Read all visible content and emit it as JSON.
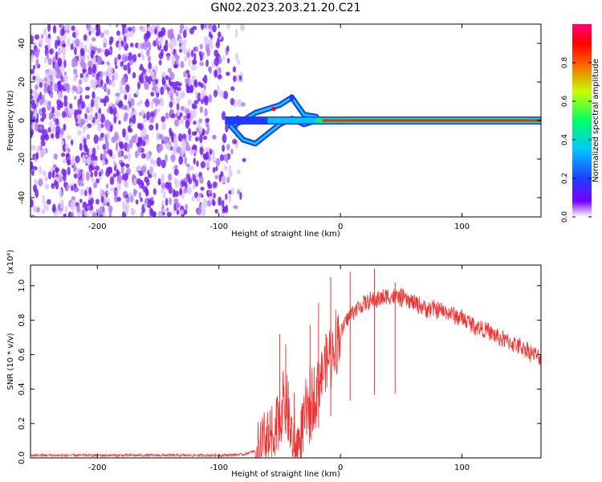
{
  "title": "GN02.2023.203.21.20.C21",
  "chart_data": [
    {
      "type": "heatmap",
      "title": "GN02.2023.203.21.20.C21",
      "xlabel": "Height of straight line (km)",
      "ylabel": "Frequency (Hz)",
      "xlim": [
        -255,
        165
      ],
      "ylim": [
        -50,
        50
      ],
      "x_ticks": [
        -200,
        -100,
        0,
        100
      ],
      "x_tick_labels": [
        "-200",
        "-100",
        "0",
        "100"
      ],
      "y_ticks": [
        -40,
        -20,
        0,
        20,
        40
      ],
      "y_tick_labels": [
        "-40",
        "-20",
        "0",
        "20",
        "40"
      ],
      "noise_region_x": [
        -255,
        -82
      ],
      "signal_line": {
        "frequency_hz": 0,
        "x_start": -20,
        "x_end": 165,
        "amplitude": 1.0
      },
      "branching_track": [
        {
          "x": -90,
          "upper": -3,
          "lower": -3
        },
        {
          "x": -80,
          "upper": 0,
          "lower": -10
        },
        {
          "x": -70,
          "upper": 4,
          "lower": -12
        },
        {
          "x": -60,
          "upper": 6,
          "lower": -7
        },
        {
          "x": -50,
          "upper": 8,
          "lower": -2
        },
        {
          "x": -40,
          "upper": 12,
          "lower": 1
        },
        {
          "x": -30,
          "upper": 3,
          "lower": -2
        },
        {
          "x": -20,
          "upper": 2,
          "lower": 0
        }
      ],
      "colorbar": {
        "label": "Normalized spectral amplitude",
        "range": [
          0,
          1
        ],
        "ticks": [
          0.0,
          0.2,
          0.4,
          0.6,
          0.8
        ],
        "tick_labels": [
          "0.0",
          "0.2",
          "0.4",
          "0.6",
          "0.8"
        ],
        "colors": [
          "#ffffff",
          "#7b00ff",
          "#1e3cff",
          "#00c8ff",
          "#00ff64",
          "#c8ff00",
          "#ff5a00",
          "#ff0000",
          "#ff0078"
        ]
      },
      "grid": false
    },
    {
      "type": "line",
      "xlabel": "Height of straight line (km)",
      "ylabel": "SNR (10 * v/v)",
      "y_scale_label": "(x10⁴)",
      "xlim": [
        -255,
        165
      ],
      "ylim": [
        0,
        1.12
      ],
      "x_ticks": [
        -200,
        -100,
        0,
        100
      ],
      "x_tick_labels": [
        "-200",
        "-100",
        "0",
        "100"
      ],
      "y_ticks": [
        0.0,
        0.2,
        0.4,
        0.6,
        0.8,
        1.0
      ],
      "y_tick_labels": [
        "0.0",
        "0.2",
        "0.4",
        "0.6",
        "0.8",
        "1.0"
      ],
      "series": [
        {
          "color": "#ee3333",
          "x": [
            -255,
            -150,
            -100,
            -80,
            -65,
            -55,
            -50,
            -45,
            -40,
            -35,
            -30,
            -25,
            -20,
            -15,
            -10,
            -5,
            0,
            5,
            10,
            20,
            30,
            40,
            50,
            60,
            70,
            80,
            90,
            100,
            110,
            120,
            130,
            140,
            150,
            160,
            165
          ],
          "y": [
            0.015,
            0.015,
            0.015,
            0.02,
            0.05,
            0.12,
            0.25,
            0.35,
            0.1,
            0.05,
            0.2,
            0.3,
            0.4,
            0.5,
            0.58,
            0.65,
            0.72,
            0.8,
            0.85,
            0.9,
            0.92,
            0.94,
            0.93,
            0.9,
            0.87,
            0.86,
            0.84,
            0.81,
            0.77,
            0.74,
            0.7,
            0.67,
            0.64,
            0.6,
            0.57
          ],
          "peak_markers": [
            {
              "x": -50,
              "y": 0.72
            },
            {
              "x": -45,
              "y": 0.66
            },
            {
              "x": -38,
              "y": 0.38
            },
            {
              "x": -25,
              "y": 0.77
            },
            {
              "x": -18,
              "y": 0.9
            },
            {
              "x": -8,
              "y": 1.05
            },
            {
              "x": 8,
              "y": 1.08
            },
            {
              "x": 28,
              "y": 1.1
            },
            {
              "x": 45,
              "y": 1.02
            }
          ]
        }
      ],
      "grid": false
    }
  ]
}
